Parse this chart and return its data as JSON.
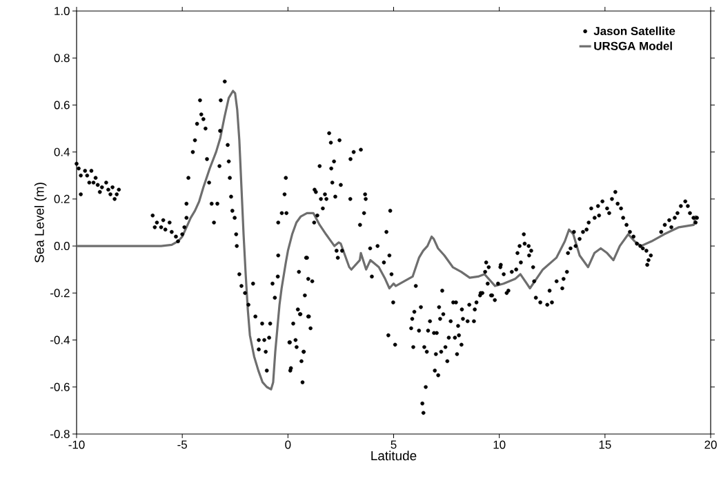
{
  "chart_data": {
    "type": "scatter",
    "xlabel": "Latitude",
    "ylabel": "Sea Level (m)",
    "xlim": [
      -10,
      20
    ],
    "xticks": [
      -10,
      -5,
      0,
      5,
      10,
      15,
      20
    ],
    "ylim": [
      -0.8,
      1.0
    ],
    "yticks": [
      {
        "value": -0.8,
        "label": "-0.8"
      },
      {
        "value": -0.6,
        "label": "-0.6"
      },
      {
        "value": -0.4,
        "label": "-0.4"
      },
      {
        "value": -0.2,
        "label": "-0.2"
      },
      {
        "value": 0.0,
        "label": "0.0"
      },
      {
        "value": 0.2,
        "label": "0.2"
      },
      {
        "value": 0.4,
        "label": "0.4"
      },
      {
        "value": 0.6,
        "label": "0.6"
      },
      {
        "value": 0.8,
        "label": "0.8"
      },
      {
        "value": 1.0,
        "label": "1.0"
      }
    ],
    "grid": false,
    "legend": "top right",
    "marker": "circle",
    "series": [
      {
        "name": "Jason Satellite",
        "color": "#000000",
        "x": [
          -10,
          -9.9,
          -9.8,
          -9.6,
          -9.5,
          -9.4,
          -9.3,
          -9.1,
          -9,
          -8.9,
          -8.8,
          -8.6,
          -8.5,
          -8.4,
          -8.3,
          -8.2,
          -8.1,
          -8,
          -9.8,
          -9.2,
          -6.4,
          -6.3,
          -6.2,
          -6,
          -5.9,
          -5.8,
          -5.6,
          -5.5,
          -5.3,
          -5.2,
          -5,
          -4.9,
          -4.8,
          -4.71,
          -4.8,
          -4.5,
          -4.4,
          -4.3,
          -4.16,
          -4.1,
          -4,
          -3.9,
          -3.83,
          -3.73,
          -3.61,
          -3.5,
          -3.34,
          -3.24,
          -3.21,
          -3.18,
          -2.99,
          -2.85,
          -2.8,
          -2.75,
          -2.69,
          -2.63,
          -2.52,
          -2.45,
          -2.42,
          -2.3,
          -2.2,
          -2.03,
          -1.87,
          -1.65,
          -1.54,
          -1.22,
          -1.38,
          -1.12,
          -0.89,
          -1.38,
          -1.0,
          -1.05,
          -0.84,
          -0.73,
          -0.62,
          -0.48,
          -0.46,
          -0.46,
          -0.29,
          -0.07,
          -0.16,
          -0.1,
          0.09,
          0.14,
          0.25,
          0.36,
          0.41,
          0.52,
          0.57,
          0.69,
          0.74,
          0.8,
          0.9,
          0.96,
          0.96,
          1.15,
          0.99,
          1.07,
          0.47,
          0.59,
          0.07,
          0.11,
          0.75,
          0.64,
          0.86,
          1.24,
          1.39,
          1.65,
          1.56,
          1.82,
          1.32,
          2.1,
          2.05,
          2.5,
          2.03,
          1.95,
          2.44,
          3.11,
          3.45,
          2.18,
          1.5,
          1.26,
          1.75,
          2.24,
          2.95,
          3.65,
          3.6,
          3.41,
          4.84,
          4.66,
          3.89,
          4.24,
          4.8,
          4.54,
          3.97,
          4.9,
          4.98,
          4.75,
          5.07,
          2.36,
          2.3,
          2.96,
          2.56,
          3.68,
          6.05,
          5.98,
          6.29,
          5.88,
          5.83,
          6.2,
          5.93,
          6.45,
          6.57,
          6.52,
          6.36,
          6.41,
          6.72,
          6.63,
          6.91,
          7.04,
          6.95,
          7.11,
          7.0,
          7.25,
          7.45,
          7.54,
          7.61,
          7.2,
          7.35,
          7.15,
          7.3,
          7.7,
          7.9,
          8.0,
          8.21,
          8.09,
          8.05,
          7.82,
          7.95,
          8.23,
          8.28,
          8.5,
          8.58,
          8.8,
          8.84,
          8.92,
          9.09,
          9.2,
          9.38,
          9.5,
          9.61,
          9.79,
          10.07,
          9.12,
          9.33,
          9.45,
          9.66,
          9.94,
          10.05,
          10.21,
          10.35,
          10.43,
          10.59,
          10.8,
          11.02,
          10.86,
          10.96,
          11.16,
          11.2,
          11.39,
          11.51,
          11.41,
          11.6,
          11.65,
          11.73,
          11.94,
          12.27,
          12.49,
          12.38,
          12.71,
          12.98,
          13.04,
          13.2,
          13.25,
          13.37,
          13.53,
          13.61,
          13.8,
          13.96,
          14.13,
          14.23,
          14.35,
          14.51,
          14.72,
          14.67,
          14.88,
          15.1,
          15.2,
          15.33,
          15.49,
          15.6,
          15.76,
          15.86,
          16.02,
          16.18,
          16.35,
          16.51,
          16.67,
          16.79,
          16.96,
          17.17,
          17.06,
          17.0,
          17.66,
          17.83,
          18.04,
          18.14,
          18.3,
          18.43,
          18.59,
          18.8,
          18.92,
          19.02,
          19.19,
          19.29,
          19.35
        ],
        "values": [
          0.35,
          0.33,
          0.3,
          0.32,
          0.3,
          0.27,
          0.32,
          0.29,
          0.26,
          0.23,
          0.25,
          0.27,
          0.24,
          0.22,
          0.25,
          0.2,
          0.22,
          0.24,
          0.22,
          0.27,
          0.13,
          0.08,
          0.1,
          0.08,
          0.11,
          0.07,
          0.1,
          0.06,
          0.04,
          0.02,
          0.05,
          0.08,
          0.12,
          0.29,
          0.18,
          0.4,
          0.45,
          0.52,
          0.62,
          0.56,
          0.54,
          0.5,
          0.37,
          0.27,
          0.18,
          0.1,
          0.18,
          0.34,
          0.49,
          0.62,
          0.7,
          0.43,
          0.36,
          0.29,
          0.21,
          0.15,
          0.12,
          0.05,
          0.0,
          -0.12,
          -0.17,
          -0.2,
          -0.25,
          -0.16,
          -0.3,
          -0.33,
          -0.4,
          -0.4,
          -0.39,
          -0.44,
          -0.53,
          -0.45,
          -0.33,
          -0.16,
          -0.22,
          -0.13,
          -0.04,
          0.1,
          0.14,
          0.14,
          0.22,
          0.29,
          -0.41,
          -0.52,
          -0.33,
          -0.4,
          -0.43,
          -0.11,
          -0.29,
          -0.58,
          -0.45,
          -0.21,
          -0.05,
          -0.14,
          -0.3,
          -0.15,
          -0.3,
          -0.35,
          -0.27,
          -0.29,
          -0.41,
          -0.53,
          -0.45,
          -0.49,
          -0.05,
          0.1,
          0.13,
          0.16,
          0.2,
          0.2,
          0.23,
          0.27,
          0.33,
          0.26,
          0.44,
          0.48,
          0.45,
          0.4,
          0.41,
          0.36,
          0.34,
          0.24,
          0.22,
          0.21,
          0.2,
          0.22,
          0.14,
          0.09,
          0.15,
          0.06,
          -0.01,
          0.0,
          -0.04,
          -0.07,
          -0.13,
          -0.12,
          -0.24,
          -0.38,
          -0.42,
          -0.05,
          -0.02,
          0.37,
          -0.02,
          0.2,
          -0.17,
          -0.28,
          -0.26,
          -0.31,
          -0.35,
          -0.36,
          -0.43,
          -0.43,
          -0.45,
          -0.6,
          -0.67,
          -0.71,
          -0.32,
          -0.36,
          -0.37,
          -0.37,
          -0.53,
          -0.55,
          -0.46,
          -0.45,
          -0.43,
          -0.49,
          -0.39,
          -0.31,
          -0.29,
          -0.26,
          -0.19,
          -0.32,
          -0.39,
          -0.46,
          -0.42,
          -0.38,
          -0.34,
          -0.24,
          -0.24,
          -0.27,
          -0.31,
          -0.32,
          -0.25,
          -0.32,
          -0.27,
          -0.24,
          -0.21,
          -0.2,
          -0.07,
          -0.09,
          -0.21,
          -0.23,
          -0.08,
          -0.2,
          -0.11,
          -0.16,
          -0.21,
          -0.16,
          -0.09,
          -0.12,
          -0.2,
          -0.19,
          -0.11,
          -0.1,
          -0.07,
          -0.03,
          0.0,
          0.05,
          0.01,
          0.0,
          -0.02,
          -0.04,
          -0.09,
          -0.15,
          -0.22,
          -0.24,
          -0.25,
          -0.24,
          -0.19,
          -0.15,
          -0.18,
          -0.14,
          -0.11,
          -0.03,
          -0.01,
          0.06,
          0.0,
          0.03,
          0.06,
          0.07,
          0.1,
          0.16,
          0.12,
          0.13,
          0.17,
          0.19,
          0.16,
          0.14,
          0.2,
          0.23,
          0.18,
          0.16,
          0.12,
          0.09,
          0.06,
          0.04,
          0.01,
          0.0,
          -0.01,
          -0.02,
          -0.04,
          -0.06,
          -0.08,
          0.06,
          0.09,
          0.11,
          0.08,
          0.12,
          0.14,
          0.17,
          0.19,
          0.17,
          0.14,
          0.12,
          0.1,
          0.12
        ]
      },
      {
        "name": "URSGA Model",
        "type": "line",
        "color": "#6e6e6e",
        "marker": "none",
        "line_style": "solid",
        "x": [
          -10,
          -6,
          -5.5,
          -5.2,
          -5,
          -4.8,
          -4.6,
          -4.4,
          -4.2,
          -4,
          -3.7,
          -3.4,
          -3.2,
          -3,
          -2.8,
          -2.6,
          -2.5,
          -2.4,
          -2.3,
          -2.2,
          -2.1,
          -2,
          -1.9,
          -1.8,
          -1.6,
          -1.4,
          -1.2,
          -1,
          -0.8,
          -0.7,
          -0.6,
          -0.5,
          -0.4,
          -0.3,
          -0.1,
          0,
          0.2,
          0.4,
          0.6,
          0.9,
          1.2,
          1.5,
          1.8,
          2,
          2.2,
          2.4,
          2.5,
          2.9,
          3,
          3.4,
          3.45,
          3.7,
          3.9,
          4.3,
          4.6,
          4.8,
          5,
          5.1,
          5.9,
          6.2,
          6.4,
          6.6,
          6.8,
          6.9,
          7.1,
          7.4,
          7.8,
          8.2,
          8.6,
          9,
          9.3,
          9.8,
          10.2,
          10.75,
          11,
          11.45,
          12.06,
          12.7,
          13.1,
          13.3,
          13.5,
          13.8,
          14.2,
          14.5,
          14.8,
          15.1,
          15.4,
          15.7,
          16.1,
          16.4,
          16.7,
          17.2,
          17.8,
          18.5,
          19.2,
          19.3
        ],
        "values": [
          0,
          0,
          0.005,
          0.02,
          0.04,
          0.08,
          0.12,
          0.15,
          0.19,
          0.25,
          0.33,
          0.4,
          0.46,
          0.55,
          0.63,
          0.66,
          0.65,
          0.58,
          0.45,
          0.25,
          0.05,
          -0.12,
          -0.27,
          -0.38,
          -0.47,
          -0.53,
          -0.58,
          -0.6,
          -0.61,
          -0.58,
          -0.45,
          -0.35,
          -0.25,
          -0.18,
          -0.07,
          -0.02,
          0.05,
          0.1,
          0.125,
          0.14,
          0.14,
          0.09,
          0.05,
          0.025,
          0.0,
          0.015,
          0.01,
          -0.09,
          -0.1,
          -0.06,
          -0.03,
          -0.1,
          -0.06,
          -0.09,
          -0.14,
          -0.18,
          -0.16,
          -0.17,
          -0.13,
          -0.05,
          -0.02,
          0.0,
          0.04,
          0.03,
          -0.01,
          -0.04,
          -0.09,
          -0.11,
          -0.135,
          -0.13,
          -0.12,
          -0.17,
          -0.16,
          -0.14,
          -0.12,
          -0.18,
          -0.1,
          -0.05,
          0.02,
          0.07,
          0.05,
          -0.04,
          -0.09,
          -0.03,
          -0.01,
          -0.03,
          -0.06,
          0.0,
          0.05,
          0.02,
          0.0,
          0.02,
          0.05,
          0.08,
          0.09,
          0.13
        ]
      }
    ]
  }
}
